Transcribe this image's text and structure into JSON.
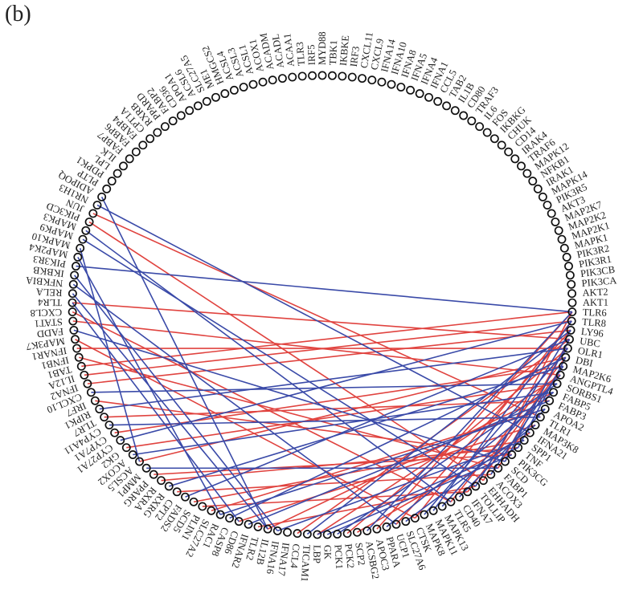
{
  "panel_label": "(b)",
  "colors": {
    "red": "#e0433f",
    "blue": "#3a4aa8",
    "node": "#111111"
  },
  "nodes": [
    "MYD88",
    "TBK1",
    "IKBKE",
    "IRF3",
    "CXCL11",
    "CXCL9",
    "IFNA14",
    "IFNA10",
    "IFNA8",
    "IFNA5",
    "IFNA4",
    "IFNA1",
    "CCL5",
    "TAB2",
    "IL1B",
    "CD80",
    "TRAF3",
    "IL6",
    "FOS",
    "IKBKG",
    "CHUK",
    "CD14",
    "IRAK4",
    "TRAF6",
    "MAPK12",
    "NFKB1",
    "IRAK1",
    "MAPK14",
    "PIK3R5",
    "AKT3",
    "MAP2K7",
    "MAP2K2",
    "MAP2K1",
    "MAPK1",
    "PIK3R2",
    "PIK3R1",
    "PIK3CB",
    "PIK3CA",
    "AKT2",
    "AKT1",
    "TLR6",
    "TLR8",
    "LY96",
    "UBC",
    "OLR1",
    "DBI",
    "MAP2K6",
    "ANGPTL4",
    "SORBS1",
    "FABP5",
    "FABP3",
    "APOA2",
    "TLR1",
    "MAP3K8",
    "IFNA21",
    "SPP1",
    "TNF",
    "PIK3CG",
    "SCD",
    "FABP1",
    "ACOX3",
    "EHHADH",
    "TOLLIP",
    "IFNA7",
    "CD40",
    "TLR5",
    "MAPK13",
    "MAPK11",
    "MAPK8",
    "CTSK",
    "SLC27A6",
    "UCP1",
    "PPARA",
    "APOC3",
    "ACSBG2",
    "SCP2",
    "PCK2",
    "PCK1",
    "GK",
    "LBP",
    "TICAM1",
    "CCL4",
    "IFNA17",
    "IFNA16",
    "IL12B",
    "TLR2",
    "IFNAR2",
    "CD86",
    "CASP8",
    "RAC1",
    "SLC27A2",
    "PLIN1",
    "SCD5",
    "FADS2",
    "CPT2",
    "RXRG",
    "RXRA",
    "PPARG",
    "MMP1",
    "ACSL5",
    "ACOX2",
    "GK2",
    "CYP27A1",
    "CYP7A1",
    "CYP4A11",
    "TLR7",
    "RIPK1",
    "IRF7",
    "CXCL10",
    "IFNA2",
    "IL12A",
    "TAB1",
    "IFNB1",
    "IFNAR1",
    "MAP3K7",
    "FADD",
    "STAT1",
    "CXCL8",
    "TLR4",
    "RELA",
    "NFKBIA",
    "IKBKB",
    "PIK3R3",
    "MAP2K4",
    "MAPK10",
    "MAPK9",
    "MAPK3",
    "PIK3CD",
    "JUN",
    "NR1H3",
    "ADIPOQ",
    "PLTP",
    "PDPK1",
    "LPL",
    "ILK",
    "FABP7",
    "FABP6",
    "FABP4",
    "CPT1A",
    "RXRB",
    "PPARD",
    "FABP2",
    "CD36",
    "APOA1",
    "ACSL6",
    "SLC27A5",
    "ME1",
    "HMGCS2",
    "ACSL4",
    "ACSL3",
    "ACSL1",
    "ACOX1",
    "ACADM",
    "ACADL",
    "ACAA1",
    "TLR3",
    "IRF5"
  ],
  "edges": [
    [
      "JUN",
      "TLR1",
      "red"
    ],
    [
      "PIK3CD",
      "EHHADH",
      "red"
    ],
    [
      "TLR4",
      "UBC",
      "red"
    ],
    [
      "STAT1",
      "ANGPTL4",
      "red"
    ],
    [
      "IFNAR1",
      "OLR1",
      "red"
    ],
    [
      "TAB1",
      "TLR6",
      "red"
    ],
    [
      "IL12A",
      "TLR8",
      "red"
    ],
    [
      "IFNA2",
      "LY96",
      "red"
    ],
    [
      "MAP3K7",
      "CTSK",
      "red"
    ],
    [
      "CXCL8",
      "TLR5",
      "red"
    ],
    [
      "IFNB1",
      "FABP1",
      "red"
    ],
    [
      "IRF7",
      "PIK3CG",
      "red"
    ],
    [
      "TLR7",
      "FABP3",
      "red"
    ],
    [
      "CYP7A1",
      "MAP2K6",
      "red"
    ],
    [
      "GK2",
      "SORBS1",
      "red"
    ],
    [
      "ACSL5",
      "DBI",
      "red"
    ],
    [
      "RXRA",
      "TNF",
      "red"
    ],
    [
      "CPT2",
      "ACOX3",
      "red"
    ],
    [
      "SCD5",
      "SPP1",
      "red"
    ],
    [
      "SLC27A2",
      "APOA2",
      "red"
    ],
    [
      "IL12B",
      "FABP5",
      "red"
    ],
    [
      "CCL4",
      "UBC",
      "red"
    ],
    [
      "LBP",
      "ANGPTL4",
      "red"
    ],
    [
      "PCK2",
      "OLR1",
      "red"
    ],
    [
      "APOC3",
      "TLR6",
      "red"
    ],
    [
      "UCP1",
      "LY96",
      "red"
    ],
    [
      "CTSK",
      "TLR8",
      "red"
    ],
    [
      "TLR5",
      "DBI",
      "red"
    ],
    [
      "IFNA7",
      "MAP2K6",
      "red"
    ],
    [
      "EHHADH",
      "TLR6",
      "red"
    ],
    [
      "FABP1",
      "UBC",
      "red"
    ],
    [
      "SCP2",
      "IFNA21",
      "red"
    ],
    [
      "CD86",
      "MAP3K8",
      "red"
    ],
    [
      "TLR2",
      "TOLLIP",
      "red"
    ],
    [
      "PLIN1",
      "IFNA7",
      "red"
    ],
    [
      "PPARG",
      "PIK3CG",
      "red"
    ],
    [
      "NR1H3",
      "IFNA21",
      "blue"
    ],
    [
      "MAPK3",
      "TLR5",
      "blue"
    ],
    [
      "MAPK9",
      "TOLLIP",
      "blue"
    ],
    [
      "PIK3R3",
      "TLR6",
      "blue"
    ],
    [
      "NFKBIA",
      "UCP1",
      "blue"
    ],
    [
      "RELA",
      "IL12B",
      "blue"
    ],
    [
      "TLR4",
      "CD86",
      "blue"
    ],
    [
      "FADD",
      "SCD",
      "blue"
    ],
    [
      "CXCL10",
      "SORBS1",
      "blue"
    ],
    [
      "RIPK1",
      "OLR1",
      "blue"
    ],
    [
      "CYP4A11",
      "TLR1",
      "blue"
    ],
    [
      "CYP27A1",
      "TLR8",
      "blue"
    ],
    [
      "ACOX2",
      "FABP5",
      "blue"
    ],
    [
      "MMP1",
      "FABP1",
      "blue"
    ],
    [
      "RXRG",
      "MAP2K6",
      "blue"
    ],
    [
      "FADS2",
      "UBC",
      "blue"
    ],
    [
      "RAC1",
      "APOA2",
      "blue"
    ],
    [
      "CASP8",
      "DBI",
      "blue"
    ],
    [
      "IFNAR2",
      "FABP3",
      "blue"
    ],
    [
      "IFNA16",
      "SPP1",
      "blue"
    ],
    [
      "TICAM1",
      "LY96",
      "blue"
    ],
    [
      "GK",
      "PIK3CG",
      "blue"
    ],
    [
      "PCK1",
      "SORBS1",
      "blue"
    ],
    [
      "LBP",
      "TNF",
      "blue"
    ],
    [
      "ACSBG2",
      "TLR6",
      "blue"
    ],
    [
      "PPARA",
      "FABP5",
      "blue"
    ],
    [
      "SLC27A6",
      "MAP3K8",
      "blue"
    ],
    [
      "MAPK8",
      "OLR1",
      "blue"
    ],
    [
      "MAPK13",
      "ANGPTL4",
      "blue"
    ],
    [
      "MAPK11",
      "TLR8",
      "blue"
    ],
    [
      "CD40",
      "APOA2",
      "blue"
    ],
    [
      "TOLLIP",
      "LY96",
      "blue"
    ],
    [
      "ACOX3",
      "MAP2K6",
      "blue"
    ],
    [
      "SCD",
      "UBC",
      "blue"
    ],
    [
      "TNF",
      "DBI",
      "blue"
    ],
    [
      "ADIPOQ",
      "IL12B",
      "blue"
    ],
    [
      "MAP2K4",
      "RAC1",
      "blue"
    ],
    [
      "IKBKB",
      "IFNA16",
      "blue"
    ],
    [
      "MAPK10",
      "ACSL5",
      "blue"
    ]
  ]
}
